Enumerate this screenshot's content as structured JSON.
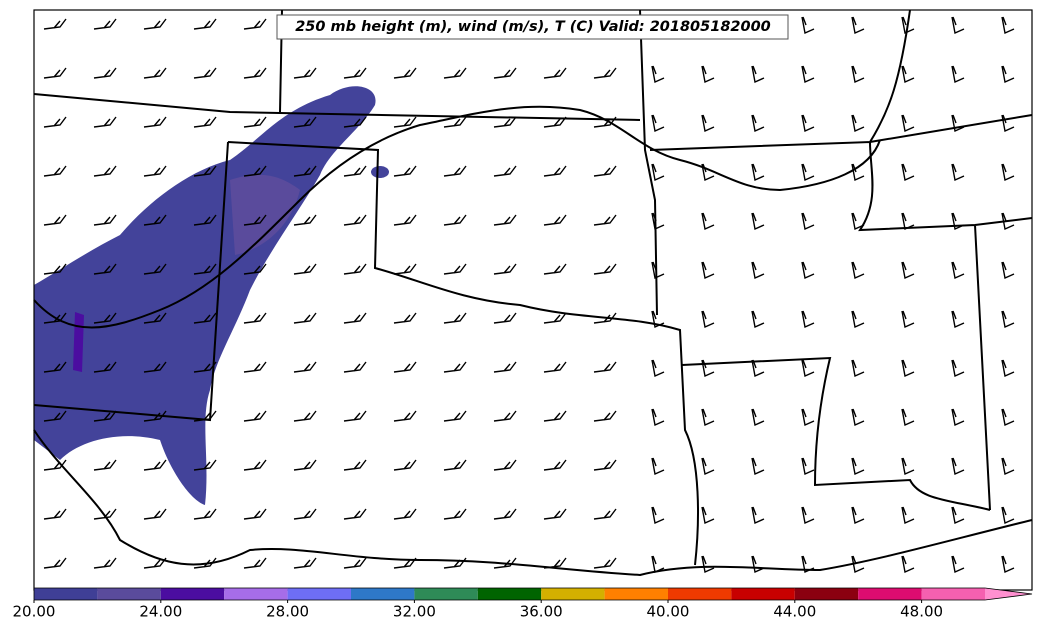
{
  "title": "250 mb height (m), wind (m/s), T (C) Valid: 201805182000",
  "colorbar": {
    "lim": [
      20,
      50
    ],
    "levels": [
      20,
      22,
      24,
      26,
      28,
      30,
      32,
      34,
      36,
      38,
      40,
      42,
      44,
      46,
      48,
      50
    ],
    "colors": [
      "#3f3f96",
      "#5a4b9c",
      "#4b0da0",
      "#a66de8",
      "#6e6ef5",
      "#2e78c8",
      "#2e8b57",
      "#006400",
      "#d4b000",
      "#ff8000",
      "#ee3a00",
      "#c80000",
      "#8b0010",
      "#dd0c70",
      "#f560b0"
    ],
    "extend_color": "#ff90d0",
    "ticks": [
      {
        "value": 20,
        "label": "20.00"
      },
      {
        "value": 24,
        "label": "24.00"
      },
      {
        "value": 28,
        "label": "28.00"
      },
      {
        "value": 32,
        "label": "32.00"
      },
      {
        "value": 36,
        "label": "36.00"
      },
      {
        "value": 40,
        "label": "40.00"
      },
      {
        "value": 44,
        "label": "44.00"
      },
      {
        "value": 48,
        "label": "48.00"
      }
    ]
  }
}
